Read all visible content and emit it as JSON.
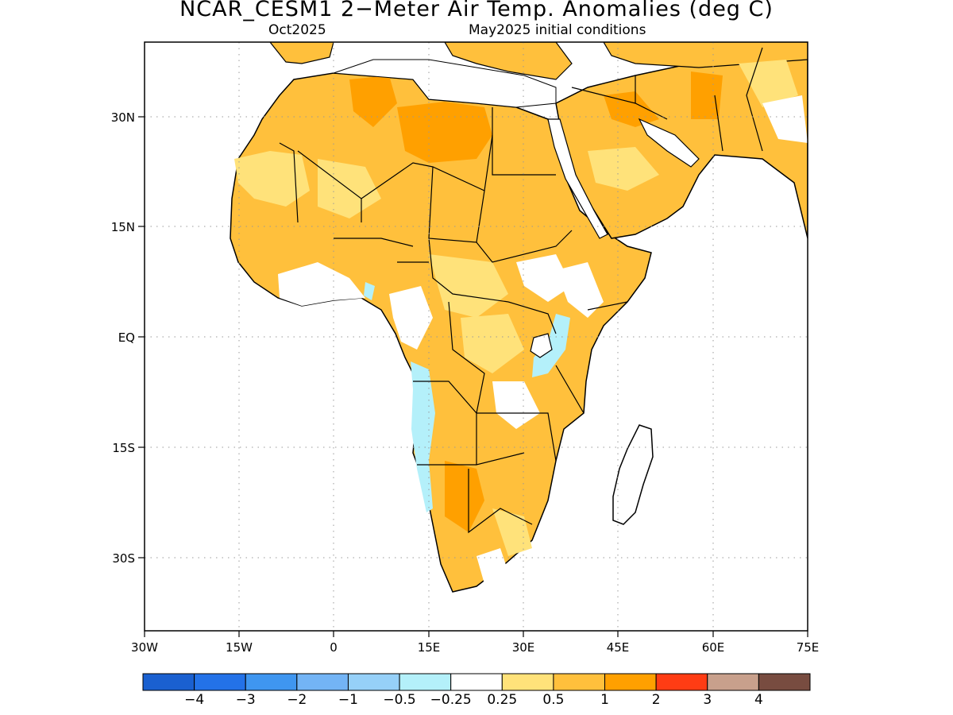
{
  "title": "NCAR_CESM1 2−Meter Air Temp. Anomalies (deg C)",
  "subtitle_left": "Oct2025",
  "subtitle_right": "May2025 initial conditions",
  "axes": {
    "lon_ticks": [
      "30W",
      "15W",
      "0",
      "15E",
      "30E",
      "45E",
      "60E",
      "75E"
    ],
    "lat_ticks": [
      "30N",
      "15N",
      "EQ",
      "15S",
      "30S"
    ],
    "lon_range": [
      -30,
      75
    ],
    "lat_range": [
      -40,
      40
    ],
    "grid": "dotted"
  },
  "colorbar": {
    "colors": [
      "#1a60d0",
      "#2372e8",
      "#3f96f0",
      "#73b4f5",
      "#96d0f8",
      "#b4f0fa",
      "#ffffff",
      "#ffe27a",
      "#ffc03c",
      "#ffa000",
      "#ff3c14",
      "#c8a08c",
      "#784c40"
    ],
    "labels": [
      "−4",
      "−3",
      "−2",
      "−1",
      "−0.5",
      "−0.25",
      "0.25",
      "0.5",
      "1",
      "2",
      "3",
      "4"
    ]
  }
}
